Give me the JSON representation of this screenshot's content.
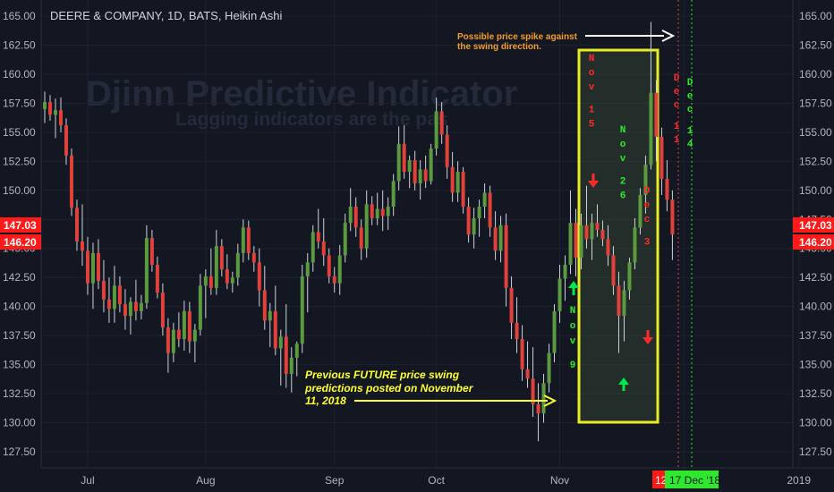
{
  "header": {
    "title": "DEERE & COMPANY, 1D, BATS, Heikin Ashi"
  },
  "watermark": {
    "line1": "Djinn Predictive Indicator",
    "line2": "Lagging indicators are the pas"
  },
  "colors": {
    "background": "#131722",
    "up_candle": "#5b9a3f",
    "down_candle": "#e0413a",
    "wick": "#cfd2da",
    "annotation_yellow": "#ffff2e",
    "annotation_orange": "#f59d2a",
    "arrow_green": "#00e84a",
    "arrow_red": "#ff2a2a",
    "price_tag_red": "#ff1a1a",
    "marker_green": "#2ee82e"
  },
  "chart_data": {
    "type": "candlestick",
    "title": "DEERE & COMPANY, 1D, BATS, Heikin Ashi",
    "y_axis_right": {
      "ticks": [
        "165.00",
        "162.50",
        "160.00",
        "157.50",
        "155.00",
        "152.50",
        "150.00",
        "147.50",
        "145.00",
        "142.50",
        "140.00",
        "137.50",
        "135.00",
        "132.50",
        "130.00",
        "127.50"
      ],
      "ylim": [
        125.9,
        166.2
      ]
    },
    "y_axis_left": {
      "ticks": [
        "165.00",
        "162.50",
        "160.00",
        "157.50",
        "155.00",
        "152.50",
        "150.00",
        "145.00",
        "142.50",
        "140.00",
        "137.50",
        "135.00",
        "132.50",
        "130.00",
        "127.50"
      ]
    },
    "x_axis": {
      "labels": [
        "Jul",
        "Aug",
        "Sep",
        "Oct",
        "Nov",
        "Dec",
        "2019"
      ],
      "label_dates": [
        "2018-07-02",
        "2018-08-01",
        "2018-09-04",
        "2018-10-01",
        "2018-11-01",
        "2018-12-03",
        "2019-01-02"
      ]
    },
    "price_tags": [
      "147.03",
      "146.20"
    ],
    "date_tags": [
      "12",
      "17 Dec '18"
    ],
    "candles": [
      {
        "o": 157.0,
        "h": 158.5,
        "l": 155.8,
        "c": 157.6
      },
      {
        "o": 157.6,
        "h": 158.2,
        "l": 156.0,
        "c": 156.5
      },
      {
        "o": 156.5,
        "h": 157.9,
        "l": 154.5,
        "c": 156.9
      },
      {
        "o": 156.9,
        "h": 158.0,
        "l": 155.0,
        "c": 155.6
      },
      {
        "o": 155.6,
        "h": 156.2,
        "l": 152.2,
        "c": 153.0
      },
      {
        "o": 153.0,
        "h": 153.6,
        "l": 147.8,
        "c": 148.5
      },
      {
        "o": 148.5,
        "h": 149.2,
        "l": 144.8,
        "c": 145.6
      },
      {
        "o": 145.6,
        "h": 148.8,
        "l": 143.5,
        "c": 144.8
      },
      {
        "o": 144.8,
        "h": 146.0,
        "l": 141.0,
        "c": 142.0
      },
      {
        "o": 142.0,
        "h": 145.5,
        "l": 139.8,
        "c": 144.6
      },
      {
        "o": 144.6,
        "h": 145.8,
        "l": 141.5,
        "c": 142.2
      },
      {
        "o": 142.2,
        "h": 144.0,
        "l": 139.5,
        "c": 140.6
      },
      {
        "o": 140.6,
        "h": 142.5,
        "l": 138.6,
        "c": 139.8
      },
      {
        "o": 139.8,
        "h": 143.5,
        "l": 138.6,
        "c": 141.8
      },
      {
        "o": 141.8,
        "h": 142.6,
        "l": 139.5,
        "c": 140.2
      },
      {
        "o": 140.2,
        "h": 141.5,
        "l": 138.0,
        "c": 139.2
      },
      {
        "o": 139.2,
        "h": 140.8,
        "l": 137.6,
        "c": 140.4
      },
      {
        "o": 140.4,
        "h": 142.3,
        "l": 138.8,
        "c": 139.6
      },
      {
        "o": 139.6,
        "h": 141.0,
        "l": 138.9,
        "c": 140.3
      },
      {
        "o": 140.3,
        "h": 147.0,
        "l": 139.8,
        "c": 145.9
      },
      {
        "o": 145.9,
        "h": 146.6,
        "l": 143.0,
        "c": 143.6
      },
      {
        "o": 143.6,
        "h": 144.3,
        "l": 140.7,
        "c": 141.2
      },
      {
        "o": 141.2,
        "h": 142.0,
        "l": 137.5,
        "c": 138.2
      },
      {
        "o": 138.2,
        "h": 139.0,
        "l": 134.3,
        "c": 136.0
      },
      {
        "o": 136.0,
        "h": 138.6,
        "l": 135.2,
        "c": 138.0
      },
      {
        "o": 138.0,
        "h": 139.5,
        "l": 136.5,
        "c": 137.2
      },
      {
        "o": 137.2,
        "h": 140.5,
        "l": 136.2,
        "c": 139.6
      },
      {
        "o": 139.6,
        "h": 140.4,
        "l": 136.0,
        "c": 137.0
      },
      {
        "o": 137.0,
        "h": 138.5,
        "l": 135.2,
        "c": 138.0
      },
      {
        "o": 138.0,
        "h": 142.8,
        "l": 137.5,
        "c": 141.8
      },
      {
        "o": 141.8,
        "h": 143.2,
        "l": 139.0,
        "c": 142.6
      },
      {
        "o": 142.6,
        "h": 145.0,
        "l": 141.0,
        "c": 141.6
      },
      {
        "o": 141.6,
        "h": 146.6,
        "l": 141.0,
        "c": 145.2
      },
      {
        "o": 145.2,
        "h": 145.8,
        "l": 142.6,
        "c": 143.2
      },
      {
        "o": 143.2,
        "h": 144.5,
        "l": 141.5,
        "c": 142.0
      },
      {
        "o": 142.0,
        "h": 143.0,
        "l": 141.2,
        "c": 142.5
      },
      {
        "o": 142.5,
        "h": 145.4,
        "l": 141.8,
        "c": 144.6
      },
      {
        "o": 144.6,
        "h": 147.5,
        "l": 143.8,
        "c": 146.8
      },
      {
        "o": 146.8,
        "h": 147.4,
        "l": 144.0,
        "c": 144.6
      },
      {
        "o": 144.6,
        "h": 145.2,
        "l": 143.0,
        "c": 143.8
      },
      {
        "o": 143.8,
        "h": 145.0,
        "l": 140.0,
        "c": 141.4
      },
      {
        "o": 141.4,
        "h": 143.5,
        "l": 138.0,
        "c": 138.8
      },
      {
        "o": 138.8,
        "h": 140.3,
        "l": 136.5,
        "c": 139.6
      },
      {
        "o": 139.6,
        "h": 141.8,
        "l": 135.8,
        "c": 136.4
      },
      {
        "o": 136.4,
        "h": 138.0,
        "l": 133.2,
        "c": 137.4
      },
      {
        "o": 137.4,
        "h": 140.2,
        "l": 133.0,
        "c": 134.2
      },
      {
        "o": 134.2,
        "h": 136.5,
        "l": 132.6,
        "c": 135.6
      },
      {
        "o": 135.6,
        "h": 137.0,
        "l": 134.0,
        "c": 136.8
      },
      {
        "o": 136.8,
        "h": 143.6,
        "l": 136.0,
        "c": 142.6
      },
      {
        "o": 142.6,
        "h": 144.6,
        "l": 139.5,
        "c": 143.8
      },
      {
        "o": 143.8,
        "h": 147.0,
        "l": 143.0,
        "c": 146.4
      },
      {
        "o": 146.4,
        "h": 148.4,
        "l": 145.0,
        "c": 145.6
      },
      {
        "o": 145.6,
        "h": 147.6,
        "l": 143.5,
        "c": 144.4
      },
      {
        "o": 144.4,
        "h": 145.0,
        "l": 142.0,
        "c": 142.6
      },
      {
        "o": 142.6,
        "h": 143.4,
        "l": 141.2,
        "c": 142.0
      },
      {
        "o": 142.0,
        "h": 145.3,
        "l": 141.0,
        "c": 144.4
      },
      {
        "o": 144.4,
        "h": 148.0,
        "l": 143.8,
        "c": 147.2
      },
      {
        "o": 147.2,
        "h": 150.2,
        "l": 146.5,
        "c": 148.6
      },
      {
        "o": 148.6,
        "h": 149.4,
        "l": 146.0,
        "c": 146.8
      },
      {
        "o": 146.8,
        "h": 147.5,
        "l": 144.0,
        "c": 145.0
      },
      {
        "o": 145.0,
        "h": 150.0,
        "l": 144.2,
        "c": 148.8
      },
      {
        "o": 148.8,
        "h": 149.5,
        "l": 147.0,
        "c": 147.6
      },
      {
        "o": 147.6,
        "h": 149.8,
        "l": 147.0,
        "c": 148.4
      },
      {
        "o": 148.4,
        "h": 150.0,
        "l": 146.5,
        "c": 147.8
      },
      {
        "o": 147.8,
        "h": 149.4,
        "l": 146.6,
        "c": 148.6
      },
      {
        "o": 148.6,
        "h": 151.4,
        "l": 147.8,
        "c": 150.8
      },
      {
        "o": 150.8,
        "h": 155.5,
        "l": 150.0,
        "c": 154.0
      },
      {
        "o": 154.0,
        "h": 155.6,
        "l": 151.0,
        "c": 151.6
      },
      {
        "o": 151.6,
        "h": 153.0,
        "l": 150.2,
        "c": 152.6
      },
      {
        "o": 152.6,
        "h": 153.4,
        "l": 150.0,
        "c": 150.6
      },
      {
        "o": 150.6,
        "h": 152.6,
        "l": 149.2,
        "c": 151.8
      },
      {
        "o": 151.8,
        "h": 153.0,
        "l": 150.2,
        "c": 150.8
      },
      {
        "o": 150.8,
        "h": 154.0,
        "l": 150.5,
        "c": 153.6
      },
      {
        "o": 153.6,
        "h": 158.0,
        "l": 153.0,
        "c": 156.8
      },
      {
        "o": 156.8,
        "h": 157.6,
        "l": 154.0,
        "c": 154.8
      },
      {
        "o": 154.8,
        "h": 155.6,
        "l": 151.0,
        "c": 152.0
      },
      {
        "o": 152.0,
        "h": 153.3,
        "l": 149.0,
        "c": 149.8
      },
      {
        "o": 149.8,
        "h": 152.5,
        "l": 149.0,
        "c": 151.6
      },
      {
        "o": 151.6,
        "h": 152.0,
        "l": 148.0,
        "c": 148.6
      },
      {
        "o": 148.6,
        "h": 149.4,
        "l": 145.5,
        "c": 146.2
      },
      {
        "o": 146.2,
        "h": 148.5,
        "l": 145.0,
        "c": 147.6
      },
      {
        "o": 147.6,
        "h": 149.2,
        "l": 146.0,
        "c": 148.6
      },
      {
        "o": 148.6,
        "h": 150.6,
        "l": 147.6,
        "c": 149.8
      },
      {
        "o": 149.8,
        "h": 150.4,
        "l": 146.0,
        "c": 146.8
      },
      {
        "o": 146.8,
        "h": 148.2,
        "l": 144.0,
        "c": 144.8
      },
      {
        "o": 144.8,
        "h": 147.8,
        "l": 143.8,
        "c": 147.0
      },
      {
        "o": 147.0,
        "h": 148.0,
        "l": 140.0,
        "c": 141.6
      },
      {
        "o": 141.6,
        "h": 142.6,
        "l": 137.2,
        "c": 138.6
      },
      {
        "o": 138.6,
        "h": 140.8,
        "l": 136.0,
        "c": 137.2
      },
      {
        "o": 137.2,
        "h": 138.4,
        "l": 133.6,
        "c": 134.6
      },
      {
        "o": 134.6,
        "h": 137.0,
        "l": 133.0,
        "c": 133.8
      },
      {
        "o": 133.8,
        "h": 136.5,
        "l": 130.5,
        "c": 131.6
      },
      {
        "o": 131.6,
        "h": 133.4,
        "l": 128.4,
        "c": 130.8
      },
      {
        "o": 130.8,
        "h": 134.2,
        "l": 130.0,
        "c": 133.4
      },
      {
        "o": 133.4,
        "h": 136.8,
        "l": 132.6,
        "c": 136.0
      },
      {
        "o": 136.0,
        "h": 140.2,
        "l": 135.2,
        "c": 139.6
      },
      {
        "o": 139.6,
        "h": 143.6,
        "l": 138.6,
        "c": 142.4
      },
      {
        "o": 142.4,
        "h": 144.4,
        "l": 140.5,
        "c": 143.6
      },
      {
        "o": 143.6,
        "h": 150.0,
        "l": 142.8,
        "c": 147.2
      },
      {
        "o": 147.2,
        "h": 148.4,
        "l": 142.6,
        "c": 144.2
      },
      {
        "o": 144.2,
        "h": 148.0,
        "l": 143.2,
        "c": 147.0
      },
      {
        "o": 147.0,
        "h": 150.4,
        "l": 145.0,
        "c": 145.8
      },
      {
        "o": 145.8,
        "h": 148.0,
        "l": 144.0,
        "c": 147.2
      },
      {
        "o": 147.2,
        "h": 148.8,
        "l": 146.0,
        "c": 146.6
      },
      {
        "o": 146.6,
        "h": 147.4,
        "l": 145.2,
        "c": 145.8
      },
      {
        "o": 145.8,
        "h": 147.0,
        "l": 143.5,
        "c": 144.4
      },
      {
        "o": 144.4,
        "h": 145.2,
        "l": 141.0,
        "c": 141.8
      },
      {
        "o": 141.8,
        "h": 143.0,
        "l": 136.0,
        "c": 139.2
      },
      {
        "o": 139.2,
        "h": 142.2,
        "l": 137.0,
        "c": 141.4
      },
      {
        "o": 141.4,
        "h": 144.2,
        "l": 140.6,
        "c": 143.8
      },
      {
        "o": 143.8,
        "h": 147.6,
        "l": 143.2,
        "c": 146.8
      },
      {
        "o": 146.8,
        "h": 150.2,
        "l": 146.2,
        "c": 149.6
      },
      {
        "o": 149.6,
        "h": 153.0,
        "l": 148.0,
        "c": 152.2
      },
      {
        "o": 152.2,
        "h": 164.5,
        "l": 151.8,
        "c": 158.4
      },
      {
        "o": 158.4,
        "h": 159.5,
        "l": 152.5,
        "c": 154.6
      },
      {
        "o": 154.6,
        "h": 155.4,
        "l": 149.6,
        "c": 151.0
      },
      {
        "o": 151.0,
        "h": 152.6,
        "l": 148.2,
        "c": 149.2
      },
      {
        "o": 149.2,
        "h": 150.0,
        "l": 144.0,
        "c": 146.2
      }
    ]
  },
  "annotations": {
    "spike_note_line1": "Possible price spike against",
    "spike_note_line2": "the swing direction.",
    "prev_note_line1": "Previous FUTURE price swing",
    "prev_note_line2": "predictions posted on November",
    "prev_note_line3": "11, 2018",
    "labels": [
      {
        "text": "Nov 9",
        "color": "#2ee82e"
      },
      {
        "text": "Nov 15",
        "color": "#ff2a2a"
      },
      {
        "text": "Nov 26",
        "color": "#2ee82e"
      },
      {
        "text": "Dec 3",
        "color": "#ff2a2a"
      },
      {
        "text": "Dec 11",
        "color": "#ff2a2a"
      },
      {
        "text": "Dec 14",
        "color": "#2ee82e"
      }
    ]
  }
}
